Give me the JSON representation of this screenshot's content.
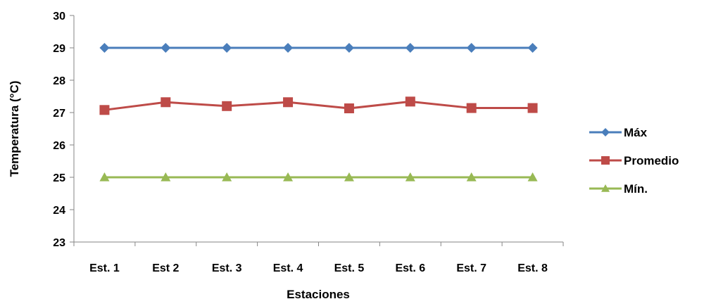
{
  "chart_data": {
    "type": "line",
    "title": "",
    "xlabel": "Estaciones",
    "ylabel": "Temperatura (°C)",
    "ylim": [
      23,
      30
    ],
    "yticks": [
      23,
      24,
      25,
      26,
      27,
      28,
      29,
      30
    ],
    "categories": [
      "Est. 1",
      "Est 2",
      "Est. 3",
      "Est. 4",
      "Est. 5",
      "Est. 6",
      "Est. 7",
      "Est. 8"
    ],
    "grid": false,
    "legend_position": "right",
    "series": [
      {
        "name": "Máx",
        "color": "#4a7ebb",
        "marker": "diamond",
        "values": [
          29,
          29,
          29,
          29,
          29,
          29,
          29,
          29
        ]
      },
      {
        "name": "Promedio",
        "color": "#be4b48",
        "marker": "square",
        "values": [
          27.08,
          27.32,
          27.2,
          27.32,
          27.13,
          27.34,
          27.14,
          27.14
        ]
      },
      {
        "name": "Mín.",
        "color": "#98b954",
        "marker": "triangle",
        "values": [
          25,
          25,
          25,
          25,
          25,
          25,
          25,
          25
        ]
      }
    ]
  }
}
